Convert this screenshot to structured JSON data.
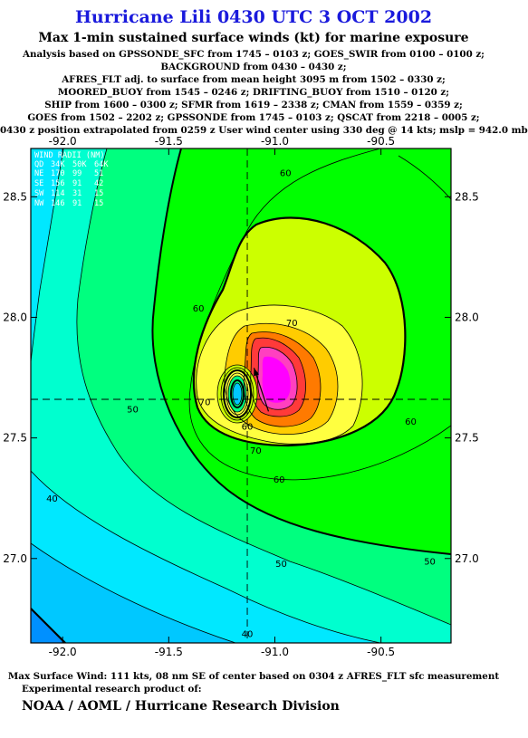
{
  "header": {
    "title": "Hurricane Lili 0430 UTC 3 OCT 2002",
    "subtitle": "Max 1-min sustained surface winds (kt) for marine exposure",
    "analysis_lines": [
      "Analysis based on  GPSSONDE_SFC from 1745 – 0103 z;  GOES_SWIR from 0100 – 0100 z;",
      "BACKGROUND from 0430 – 0430 z;",
      "AFRES_FLT adj. to surface from mean height 3095 m from 1502 – 0330 z;",
      "MOORED_BUOY from 1545 – 0246 z;  DRIFTING_BUOY from 1510 – 0120 z;",
      "SHIP from 1600 – 0300 z;  SFMR from 1619 – 2338 z;  CMAN from 1559 – 0359 z;",
      "GOES from 1502 – 2202 z;  GPSSONDE from 1745 – 0103 z;  QSCAT from 2218 – 0005 z;",
      "0430 z position extrapolated from 0259 z User wind center using 330 deg @ 14 kts; mslp = 942.0 mb"
    ]
  },
  "footer": {
    "max_wind": "Max Surface Wind: 111 kts, 08 nm SE of center based on 0304 z AFRES_FLT sfc measurement",
    "experimental": "Experimental research product of:",
    "organization": "NOAA / AOML / Hurricane Research Division"
  },
  "chart_data": {
    "type": "contour",
    "xlim": [
      -92.15,
      -90.17
    ],
    "ylim": [
      26.65,
      28.7
    ],
    "x_ticks": [
      -92.0,
      -91.5,
      -91.0,
      -90.5
    ],
    "x_tick_labels": [
      "-92.0",
      "-91.5",
      "-91.0",
      "-90.5"
    ],
    "y_ticks": [
      27.0,
      27.5,
      28.0,
      28.5
    ],
    "y_tick_labels": [
      "27.0",
      "27.5",
      "28.0",
      "28.5"
    ],
    "storm_center": {
      "lon": -91.13,
      "lat": 27.66
    },
    "max_wind_location": {
      "lon": -91.03,
      "lat": 27.64
    },
    "contour_labels": [
      {
        "text": "60",
        "lon": -90.95,
        "lat": 28.6
      },
      {
        "text": "60",
        "lon": -91.36,
        "lat": 28.04
      },
      {
        "text": "70",
        "lon": -90.92,
        "lat": 27.98
      },
      {
        "text": "50",
        "lon": -91.67,
        "lat": 27.62
      },
      {
        "text": "70",
        "lon": -91.33,
        "lat": 27.65
      },
      {
        "text": "60",
        "lon": -91.13,
        "lat": 27.55
      },
      {
        "text": "70",
        "lon": -91.09,
        "lat": 27.45
      },
      {
        "text": "60",
        "lon": -90.98,
        "lat": 27.33
      },
      {
        "text": "60",
        "lon": -90.36,
        "lat": 27.57
      },
      {
        "text": "40",
        "lon": -92.05,
        "lat": 27.25
      },
      {
        "text": "50",
        "lon": -90.97,
        "lat": 26.98
      },
      {
        "text": "50",
        "lon": -90.27,
        "lat": 26.99
      },
      {
        "text": "40",
        "lon": -91.13,
        "lat": 26.69
      }
    ],
    "wind_radii": {
      "heading": "WIND RADII (NM)",
      "columns": [
        "QD",
        "34K",
        "50K",
        "64K"
      ],
      "rows": [
        [
          "NE",
          "170",
          "99",
          "51"
        ],
        [
          "SE",
          "156",
          "91",
          "42"
        ],
        [
          "SW",
          "114",
          "31",
          "15"
        ],
        [
          "NW",
          "146",
          "91",
          "15"
        ]
      ]
    }
  }
}
